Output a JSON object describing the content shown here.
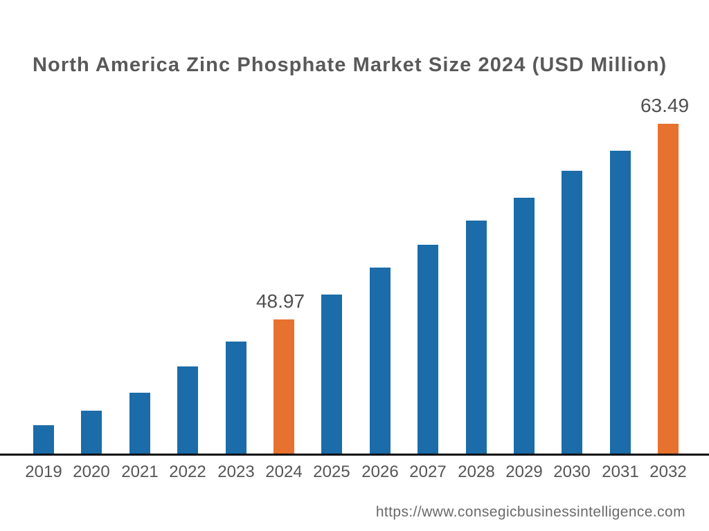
{
  "title": "North America Zinc Phosphate Market Size 2024 (USD Million)",
  "footer": {
    "source_url": "https://www.consegicbusinessintelligence.com"
  },
  "chart_data": {
    "type": "bar",
    "title": "North America Zinc Phosphate Market Size 2024 (USD Million)",
    "categories": [
      "2019",
      "2020",
      "2021",
      "2022",
      "2023",
      "2024",
      "2025",
      "2026",
      "2027",
      "2028",
      "2029",
      "2030",
      "2031",
      "2032"
    ],
    "values": [
      41.1,
      42.2,
      43.5,
      45.5,
      47.3,
      48.97,
      50.8,
      52.8,
      54.5,
      56.3,
      58.0,
      60.0,
      61.5,
      63.49
    ],
    "labeled_points": [
      {
        "category": "2024",
        "value": 48.97,
        "label": "48.97"
      },
      {
        "category": "2032",
        "value": 63.49,
        "label": "63.49"
      }
    ],
    "highlight_categories": [
      "2024",
      "2032"
    ],
    "xlabel": "",
    "ylabel": "",
    "ylim": [
      39,
      66
    ],
    "grid": false,
    "y_axis_visible": false,
    "legend": "none",
    "colors": {
      "bar_default": "#1B6CA8",
      "bar_highlight": "#E7712E",
      "axis_line": "#0D0D0D",
      "title_text": "#595959",
      "value_label_text": "#4F4F4F",
      "tick_text": "#555555",
      "url_text": "#6A6A6A",
      "background": "#FFFFFF"
    }
  }
}
